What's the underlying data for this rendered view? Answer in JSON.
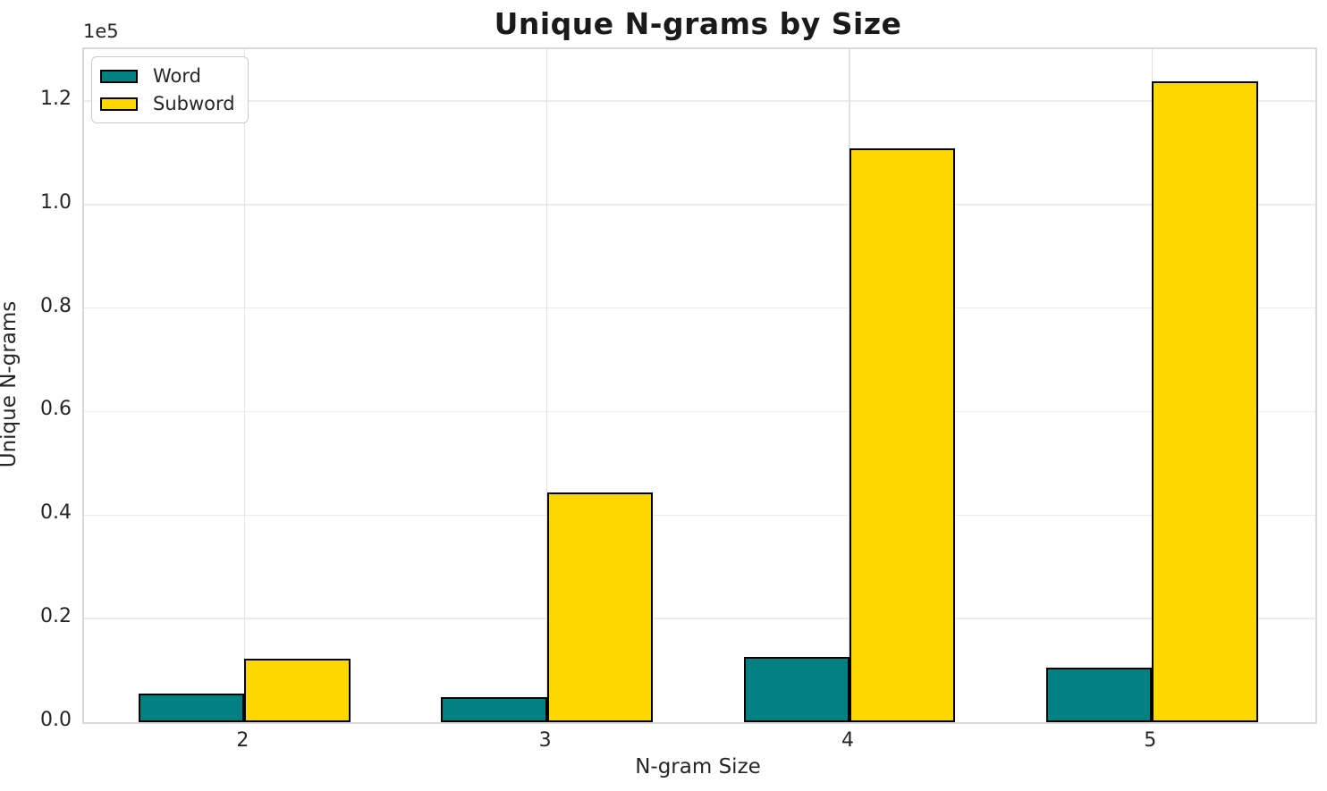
{
  "chart_data": {
    "type": "bar",
    "title": "Unique N-grams by Size",
    "xlabel": "N-gram Size",
    "ylabel": "Unique N-grams",
    "offset_text": "1e5",
    "categories": [
      "2",
      "3",
      "4",
      "5"
    ],
    "series": [
      {
        "name": "Word",
        "color": "#008080",
        "values": [
          5600,
          4900,
          12600,
          10500
        ]
      },
      {
        "name": "Subword",
        "color": "#FFD700",
        "values": [
          12200,
          44300,
          110800,
          123700
        ]
      }
    ],
    "bar_edge_color": "#000000",
    "bar_width_units": 0.35,
    "xlim": [
      -0.53,
      3.54
    ],
    "ylim": [
      0,
      130000
    ],
    "yticks": [
      0,
      20000,
      40000,
      60000,
      80000,
      100000,
      120000
    ],
    "ytick_labels": [
      "0.0",
      "0.2",
      "0.4",
      "0.6",
      "0.8",
      "1.0",
      "1.2"
    ],
    "grid": true,
    "legend_position": "upper left"
  }
}
